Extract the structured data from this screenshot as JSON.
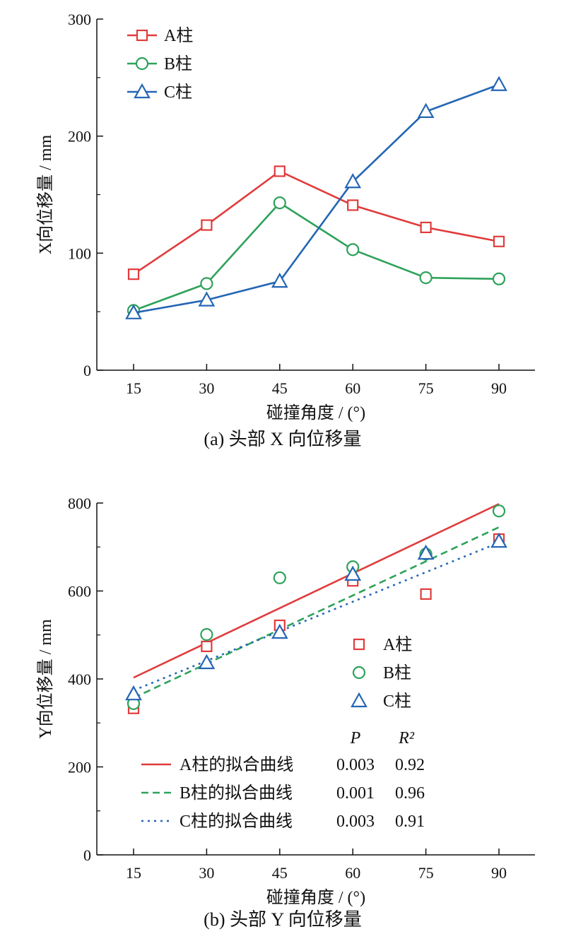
{
  "colors": {
    "A": "#e03c3c",
    "B": "#2ea25a",
    "C": "#2466b4"
  },
  "chart_data": [
    {
      "type": "line",
      "title": "(a)  头部 X 向位移量",
      "xlabel": "碰撞角度 / (°)",
      "ylabel": "X向位移量 / mm",
      "x": [
        15,
        30,
        45,
        60,
        75,
        90
      ],
      "xticks": [
        "15",
        "30",
        "45",
        "60",
        "75",
        "90"
      ],
      "ylim": [
        0,
        300
      ],
      "yticks": [
        "0",
        "100",
        "200",
        "300"
      ],
      "legend_position": "top-left",
      "series": [
        {
          "name": "A柱",
          "marker": "square",
          "values": [
            82,
            124,
            170,
            141,
            122,
            110
          ]
        },
        {
          "name": "B柱",
          "marker": "circle",
          "values": [
            51,
            74,
            143,
            103,
            79,
            78
          ]
        },
        {
          "name": "C柱",
          "marker": "triangle",
          "values": [
            49,
            60,
            76,
            161,
            221,
            244
          ]
        }
      ]
    },
    {
      "type": "scatter",
      "title": "(b)  头部 Y 向位移量",
      "xlabel": "碰撞角度 / (°)",
      "ylabel": "Y向位移量 / mm",
      "x": [
        15,
        30,
        45,
        60,
        75,
        90
      ],
      "xticks": [
        "15",
        "30",
        "45",
        "60",
        "75",
        "90"
      ],
      "ylim": [
        0,
        800
      ],
      "yticks": [
        "0",
        "200",
        "400",
        "600",
        "800"
      ],
      "legend_position": "center-right",
      "series": [
        {
          "name": "A柱",
          "marker": "square",
          "values": [
            333,
            474,
            522,
            623,
            593,
            718
          ]
        },
        {
          "name": "B柱",
          "marker": "circle",
          "values": [
            344,
            501,
            630,
            655,
            684,
            782
          ]
        },
        {
          "name": "C柱",
          "marker": "triangle",
          "values": [
            366,
            437,
            506,
            638,
            686,
            713
          ]
        }
      ],
      "fit_header": {
        "p": "P",
        "r2": "R²"
      },
      "fits": [
        {
          "name": "A柱的拟合曲线",
          "style": "solid",
          "y_at_15": 403,
          "y_at_90": 798,
          "p": "0.003",
          "r2": "0.92"
        },
        {
          "name": "B柱的拟合曲线",
          "style": "dashed",
          "y_at_15": 357,
          "y_at_90": 745,
          "p": "0.001",
          "r2": "0.96"
        },
        {
          "name": "C柱的拟合曲线",
          "style": "dotted",
          "y_at_15": 374,
          "y_at_90": 710,
          "p": "0.003",
          "r2": "0.91"
        }
      ]
    }
  ]
}
